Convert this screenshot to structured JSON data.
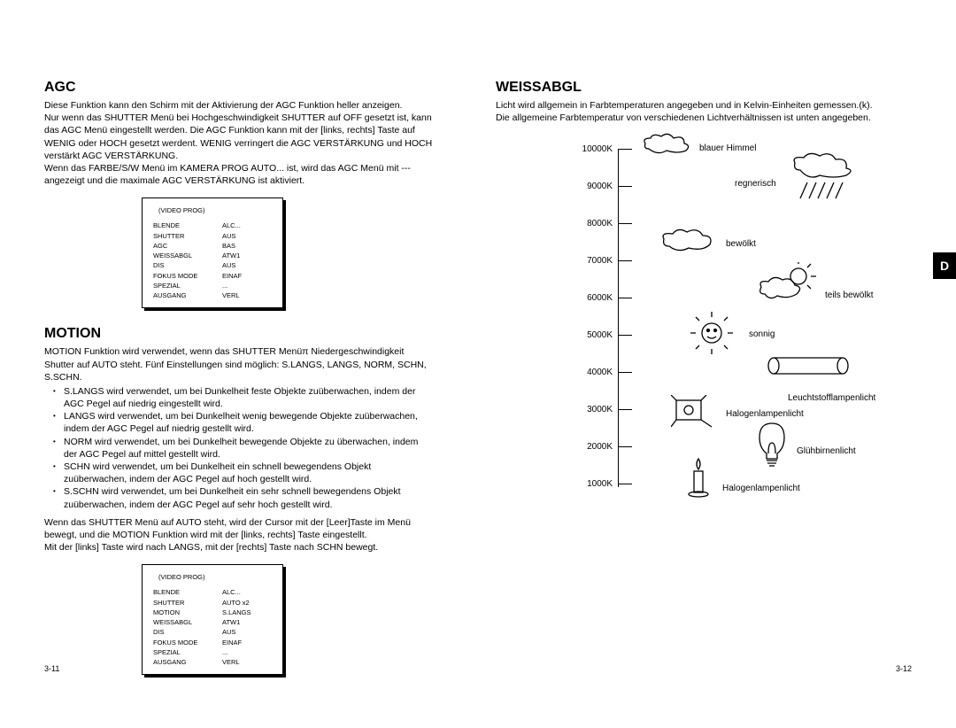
{
  "left": {
    "agc": {
      "title": "AGC",
      "text": "Diese Funktion kann den Schirm mit der Aktivierung der AGC Funktion heller anzeigen.\nNur wenn das SHUTTER Menü bei Hochgeschwindigkeit SHUTTER auf OFF gesetzt ist, kann das AGC Menü eingestellt werden. Die AGC Funktion kann mit der [links, rechts] Taste auf WENIG oder HOCH gesetzt werdent. WENIG verringert die AGC VERSTÄRKUNG und HOCH verstärkt AGC VERSTÄRKUNG.\nWenn das FARBE/S/W Menü im KAMERA PROG AUTO... ist, wird das AGC Menü mit ---angezeigt und die maximale AGC VERSTÄRKUNG ist aktiviert."
    },
    "menu1": {
      "title": "(VIDEO PROG)",
      "rows": [
        [
          "BLENDE",
          "ALC..."
        ],
        [
          "SHUTTER",
          "AUS"
        ],
        [
          "AGC",
          "BAS"
        ],
        [
          "WEISSABGL",
          "ATW1"
        ],
        [
          "DIS",
          "AUS"
        ],
        [
          "FOKUS MODE",
          "EINAF"
        ],
        [
          "SPEZIAL",
          "..."
        ],
        [
          "AUSGANG",
          "VERL"
        ]
      ]
    },
    "motion": {
      "title": "MOTION",
      "intro": "MOTION Funktion wird verwendet, wenn das SHUTTER Menüπ Niedergeschwindigkeit Shutter auf AUTO steht. Fünf Einstellungen sind möglich: S.LANGS, LANGS, NORM, SCHN, S.SCHN.",
      "bullets": [
        "S.LANGS wird verwendet, um bei Dunkelheit feste Objekte zuüberwachen, indem der AGC Pegel auf niedrig eingestellt wird.",
        "LANGS wird verwendet, um bei Dunkelheit wenig bewegende Objekte zuüberwachen, indem der AGC Pegel auf niedrig gestellt wird.",
        "NORM wird verwendet, um bei Dunkelheit bewegende Objekte zu überwachen, indem der AGC Pegel auf mittel gestellt wird.",
        "SCHN wird verwendet, um bei Dunkelheit ein schnell bewegendens Objekt zuüberwachen, indem der AGC Pegel auf hoch gestellt wird.",
        "S.SCHN wird verwendet, um bei Dunkelheit ein sehr schnell bewegendens Objekt zuüberwachen, indem der AGC Pegel auf sehr hoch gestellt wird."
      ],
      "outro": "Wenn das SHUTTER Menü auf AUTO steht, wird der Cursor mit der [Leer]Taste im Menü  bewegt, und die MOTION Funktion wird mit der [links, rechts] Taste eingestellt.\nMit der [links] Taste wird nach LANGS, mit der [rechts] Taste nach SCHN bewegt."
    },
    "menu2": {
      "title": "(VIDEO PROG)",
      "rows": [
        [
          "BLENDE",
          "ALC..."
        ],
        [
          "SHUTTER",
          "AUTO x2"
        ],
        [
          "MOTION",
          "S.LANGS"
        ],
        [
          "WEISSABGL",
          "ATW1"
        ],
        [
          "DIS",
          "AUS"
        ],
        [
          "FOKUS MODE",
          "EINAF"
        ],
        [
          "SPEZIAL",
          "..."
        ],
        [
          "AUSGANG",
          "VERL"
        ]
      ]
    },
    "pagenum": "3-11"
  },
  "right": {
    "wb": {
      "title": "WEISSABGL",
      "text": "Licht wird allgemein in Farbtemperaturen angegeben und in Kelvin-Einheiten gemessen.(k).\nDie allgemeine Farbtemperatur von verschiedenen Lichtverhältnissen ist unten angegeben."
    },
    "chart": {
      "ticks": [
        "10000K",
        "9000K",
        "8000K",
        "7000K",
        "6000K",
        "5000K",
        "4000K",
        "3000K",
        "2000K",
        "1000K"
      ],
      "labels": {
        "blue_sky": "blauer Himmel",
        "rainy": "regnerisch",
        "cloudy": "bewölkt",
        "part_cloudy": "teils bewölkt",
        "sunny": "sonnig",
        "fluorescent": "Leuchtstofflampenlicht",
        "halogen1": "Halogenlampenlicht",
        "bulb": "Glühbirnenlicht",
        "halogen2": "Halogenlampenlicht"
      }
    },
    "pagenum": "3-12",
    "tab": "D"
  }
}
